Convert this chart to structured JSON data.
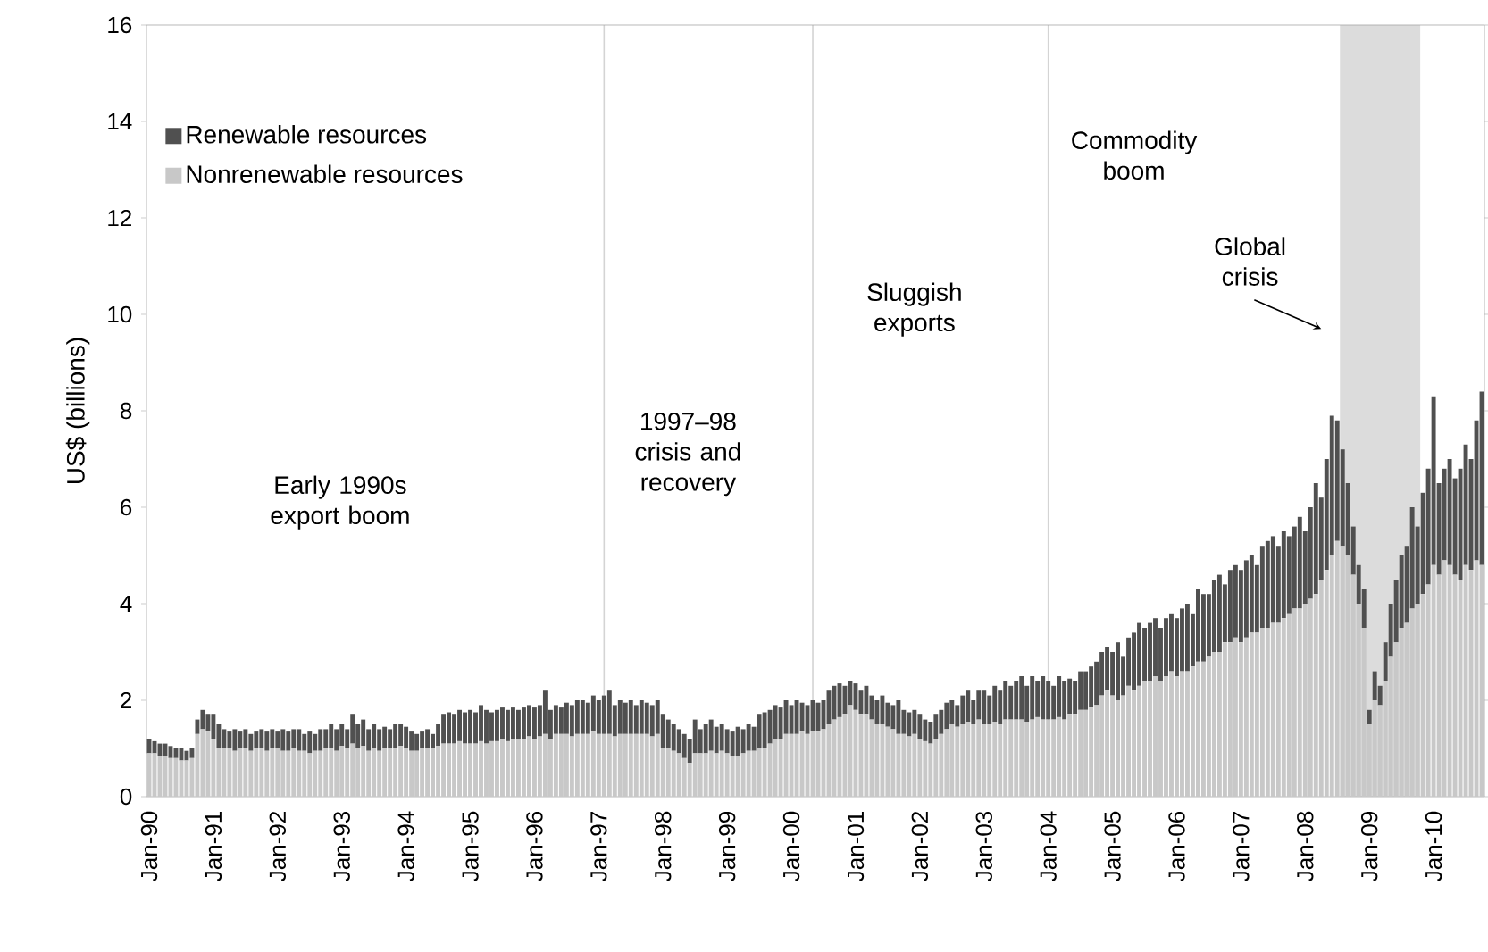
{
  "chart_data": {
    "type": "bar",
    "stacked": true,
    "ylabel": "US$ (billions)",
    "x": [
      "1990-01",
      "1990-02",
      "1990-03",
      "1990-04",
      "1990-05",
      "1990-06",
      "1990-07",
      "1990-08",
      "1990-09",
      "1990-10",
      "1990-11",
      "1990-12",
      "1991-01",
      "1991-02",
      "1991-03",
      "1991-04",
      "1991-05",
      "1991-06",
      "1991-07",
      "1991-08",
      "1991-09",
      "1991-10",
      "1991-11",
      "1991-12",
      "1992-01",
      "1992-02",
      "1992-03",
      "1992-04",
      "1992-05",
      "1992-06",
      "1992-07",
      "1992-08",
      "1992-09",
      "1992-10",
      "1992-11",
      "1992-12",
      "1993-01",
      "1993-02",
      "1993-03",
      "1993-04",
      "1993-05",
      "1993-06",
      "1993-07",
      "1993-08",
      "1993-09",
      "1993-10",
      "1993-11",
      "1993-12",
      "1994-01",
      "1994-02",
      "1994-03",
      "1994-04",
      "1994-05",
      "1994-06",
      "1994-07",
      "1994-08",
      "1994-09",
      "1994-10",
      "1994-11",
      "1994-12",
      "1995-01",
      "1995-02",
      "1995-03",
      "1995-04",
      "1995-05",
      "1995-06",
      "1995-07",
      "1995-08",
      "1995-09",
      "1995-10",
      "1995-11",
      "1995-12",
      "1996-01",
      "1996-02",
      "1996-03",
      "1996-04",
      "1996-05",
      "1996-06",
      "1996-07",
      "1996-08",
      "1996-09",
      "1996-10",
      "1996-11",
      "1996-12",
      "1997-01",
      "1997-02",
      "1997-03",
      "1997-04",
      "1997-05",
      "1997-06",
      "1997-07",
      "1997-08",
      "1997-09",
      "1997-10",
      "1997-11",
      "1997-12",
      "1998-01",
      "1998-02",
      "1998-03",
      "1998-04",
      "1998-05",
      "1998-06",
      "1998-07",
      "1998-08",
      "1998-09",
      "1998-10",
      "1998-11",
      "1998-12",
      "1999-01",
      "1999-02",
      "1999-03",
      "1999-04",
      "1999-05",
      "1999-06",
      "1999-07",
      "1999-08",
      "1999-09",
      "1999-10",
      "1999-11",
      "1999-12",
      "2000-01",
      "2000-02",
      "2000-03",
      "2000-04",
      "2000-05",
      "2000-06",
      "2000-07",
      "2000-08",
      "2000-09",
      "2000-10",
      "2000-11",
      "2000-12",
      "2001-01",
      "2001-02",
      "2001-03",
      "2001-04",
      "2001-05",
      "2001-06",
      "2001-07",
      "2001-08",
      "2001-09",
      "2001-10",
      "2001-11",
      "2001-12",
      "2002-01",
      "2002-02",
      "2002-03",
      "2002-04",
      "2002-05",
      "2002-06",
      "2002-07",
      "2002-08",
      "2002-09",
      "2002-10",
      "2002-11",
      "2002-12",
      "2003-01",
      "2003-02",
      "2003-03",
      "2003-04",
      "2003-05",
      "2003-06",
      "2003-07",
      "2003-08",
      "2003-09",
      "2003-10",
      "2003-11",
      "2003-12",
      "2004-01",
      "2004-02",
      "2004-03",
      "2004-04",
      "2004-05",
      "2004-06",
      "2004-07",
      "2004-08",
      "2004-09",
      "2004-10",
      "2004-11",
      "2004-12",
      "2005-01",
      "2005-02",
      "2005-03",
      "2005-04",
      "2005-05",
      "2005-06",
      "2005-07",
      "2005-08",
      "2005-09",
      "2005-10",
      "2005-11",
      "2005-12",
      "2006-01",
      "2006-02",
      "2006-03",
      "2006-04",
      "2006-05",
      "2006-06",
      "2006-07",
      "2006-08",
      "2006-09",
      "2006-10",
      "2006-11",
      "2006-12",
      "2007-01",
      "2007-02",
      "2007-03",
      "2007-04",
      "2007-05",
      "2007-06",
      "2007-07",
      "2007-08",
      "2007-09",
      "2007-10",
      "2007-11",
      "2007-12",
      "2008-01",
      "2008-02",
      "2008-03",
      "2008-04",
      "2008-05",
      "2008-06",
      "2008-07",
      "2008-08",
      "2008-09",
      "2008-10",
      "2008-11",
      "2008-12",
      "2009-01",
      "2009-02",
      "2009-03",
      "2009-04",
      "2009-05",
      "2009-06",
      "2009-07",
      "2009-08",
      "2009-09",
      "2009-10",
      "2009-11",
      "2009-12",
      "2010-01",
      "2010-02",
      "2010-03",
      "2010-04",
      "2010-05",
      "2010-06",
      "2010-07",
      "2010-08",
      "2010-09",
      "2010-10"
    ],
    "series": [
      {
        "name": "Nonrenewable resources",
        "color": "#c8c8c8",
        "values": [
          0.9,
          0.9,
          0.85,
          0.85,
          0.8,
          0.8,
          0.75,
          0.75,
          0.8,
          1.3,
          1.4,
          1.35,
          1.2,
          1.0,
          1.0,
          1.0,
          0.95,
          1.0,
          1.0,
          0.95,
          1.0,
          1.0,
          0.95,
          1.0,
          1.0,
          0.95,
          0.95,
          1.0,
          0.95,
          0.95,
          0.9,
          0.95,
          0.95,
          1.0,
          1.0,
          0.95,
          1.05,
          1.0,
          1.1,
          1.0,
          1.05,
          0.95,
          1.0,
          0.95,
          1.0,
          1.0,
          1.0,
          1.05,
          1.0,
          0.95,
          0.95,
          1.0,
          1.0,
          1.0,
          1.05,
          1.1,
          1.1,
          1.1,
          1.15,
          1.1,
          1.1,
          1.1,
          1.15,
          1.1,
          1.15,
          1.15,
          1.2,
          1.15,
          1.2,
          1.2,
          1.2,
          1.25,
          1.2,
          1.25,
          1.3,
          1.2,
          1.3,
          1.3,
          1.3,
          1.25,
          1.3,
          1.3,
          1.3,
          1.35,
          1.3,
          1.3,
          1.3,
          1.25,
          1.3,
          1.3,
          1.3,
          1.3,
          1.3,
          1.3,
          1.25,
          1.3,
          1.0,
          1.0,
          0.95,
          0.9,
          0.8,
          0.7,
          0.9,
          0.9,
          0.9,
          0.95,
          0.9,
          0.95,
          0.9,
          0.85,
          0.85,
          0.9,
          0.95,
          0.95,
          1.0,
          1.0,
          1.1,
          1.2,
          1.2,
          1.3,
          1.3,
          1.3,
          1.35,
          1.3,
          1.35,
          1.35,
          1.4,
          1.5,
          1.6,
          1.65,
          1.7,
          1.9,
          1.8,
          1.7,
          1.7,
          1.6,
          1.5,
          1.5,
          1.45,
          1.4,
          1.3,
          1.3,
          1.25,
          1.3,
          1.2,
          1.15,
          1.1,
          1.2,
          1.3,
          1.4,
          1.5,
          1.45,
          1.5,
          1.55,
          1.5,
          1.6,
          1.5,
          1.5,
          1.55,
          1.5,
          1.6,
          1.6,
          1.6,
          1.6,
          1.55,
          1.6,
          1.65,
          1.6,
          1.6,
          1.6,
          1.65,
          1.6,
          1.7,
          1.7,
          1.8,
          1.8,
          1.85,
          1.9,
          2.1,
          2.2,
          2.1,
          2.0,
          2.1,
          2.3,
          2.2,
          2.3,
          2.4,
          2.4,
          2.5,
          2.4,
          2.5,
          2.6,
          2.5,
          2.6,
          2.6,
          2.7,
          2.8,
          2.8,
          2.9,
          3.0,
          3.0,
          3.2,
          3.2,
          3.3,
          3.2,
          3.3,
          3.4,
          3.4,
          3.5,
          3.5,
          3.6,
          3.6,
          3.7,
          3.8,
          3.9,
          3.9,
          4.0,
          4.1,
          4.2,
          4.5,
          4.7,
          5.0,
          5.3,
          5.2,
          5.0,
          4.6,
          4.0,
          3.5,
          1.5,
          2.0,
          1.9,
          2.4,
          2.9,
          3.2,
          3.5,
          3.6,
          3.9,
          4.0,
          4.2,
          4.4,
          4.8,
          4.6,
          4.9,
          4.8,
          4.6,
          4.5,
          4.8,
          4.7,
          4.9,
          4.8
        ]
      },
      {
        "name": "Renewable resources",
        "color": "#505050",
        "values": [
          0.3,
          0.25,
          0.25,
          0.25,
          0.25,
          0.2,
          0.25,
          0.2,
          0.2,
          0.3,
          0.4,
          0.35,
          0.5,
          0.5,
          0.4,
          0.35,
          0.45,
          0.35,
          0.4,
          0.35,
          0.35,
          0.4,
          0.4,
          0.4,
          0.35,
          0.45,
          0.4,
          0.4,
          0.45,
          0.35,
          0.45,
          0.35,
          0.45,
          0.4,
          0.5,
          0.45,
          0.45,
          0.4,
          0.6,
          0.5,
          0.55,
          0.45,
          0.5,
          0.45,
          0.45,
          0.4,
          0.5,
          0.45,
          0.45,
          0.4,
          0.35,
          0.35,
          0.4,
          0.3,
          0.45,
          0.6,
          0.65,
          0.6,
          0.65,
          0.65,
          0.7,
          0.65,
          0.75,
          0.7,
          0.6,
          0.65,
          0.65,
          0.65,
          0.65,
          0.6,
          0.65,
          0.65,
          0.65,
          0.65,
          0.9,
          0.6,
          0.6,
          0.55,
          0.65,
          0.65,
          0.7,
          0.7,
          0.65,
          0.75,
          0.7,
          0.8,
          0.9,
          0.65,
          0.7,
          0.65,
          0.7,
          0.6,
          0.7,
          0.65,
          0.65,
          0.7,
          0.7,
          0.6,
          0.55,
          0.5,
          0.5,
          0.5,
          0.7,
          0.5,
          0.6,
          0.65,
          0.55,
          0.55,
          0.5,
          0.5,
          0.6,
          0.5,
          0.55,
          0.5,
          0.7,
          0.75,
          0.7,
          0.7,
          0.65,
          0.7,
          0.6,
          0.7,
          0.6,
          0.6,
          0.65,
          0.6,
          0.6,
          0.7,
          0.7,
          0.7,
          0.6,
          0.5,
          0.55,
          0.5,
          0.6,
          0.5,
          0.5,
          0.6,
          0.5,
          0.5,
          0.7,
          0.5,
          0.5,
          0.5,
          0.5,
          0.45,
          0.45,
          0.5,
          0.5,
          0.55,
          0.5,
          0.45,
          0.6,
          0.65,
          0.5,
          0.6,
          0.7,
          0.6,
          0.75,
          0.7,
          0.8,
          0.7,
          0.8,
          0.9,
          0.75,
          0.9,
          0.75,
          0.9,
          0.8,
          0.7,
          0.85,
          0.8,
          0.75,
          0.7,
          0.8,
          0.8,
          0.85,
          0.9,
          0.9,
          0.9,
          0.9,
          1.2,
          0.8,
          1.0,
          1.2,
          1.3,
          1.1,
          1.2,
          1.2,
          1.1,
          1.2,
          1.2,
          1.2,
          1.3,
          1.4,
          1.1,
          1.5,
          1.4,
          1.3,
          1.5,
          1.6,
          1.2,
          1.5,
          1.5,
          1.5,
          1.6,
          1.6,
          1.4,
          1.7,
          1.8,
          1.8,
          1.6,
          1.8,
          1.6,
          1.7,
          1.9,
          1.5,
          1.9,
          2.3,
          1.7,
          2.3,
          2.9,
          2.5,
          2.0,
          1.5,
          1.0,
          0.8,
          0.8,
          0.3,
          0.6,
          0.4,
          0.8,
          1.1,
          1.3,
          1.5,
          1.6,
          2.1,
          1.6,
          2.1,
          2.4,
          3.5,
          1.9,
          1.9,
          2.2,
          2.0,
          2.3,
          2.5,
          2.3,
          2.9,
          3.6
        ]
      }
    ],
    "xlim": [
      "1990-01",
      "2010-10"
    ],
    "xticks": [
      {
        "value": "1990-01",
        "label": "Jan-90"
      },
      {
        "value": "1991-01",
        "label": "Jan-91"
      },
      {
        "value": "1992-01",
        "label": "Jan-92"
      },
      {
        "value": "1993-01",
        "label": "Jan-93"
      },
      {
        "value": "1994-01",
        "label": "Jan-94"
      },
      {
        "value": "1995-01",
        "label": "Jan-95"
      },
      {
        "value": "1996-01",
        "label": "Jan-96"
      },
      {
        "value": "1997-01",
        "label": "Jan-97"
      },
      {
        "value": "1998-01",
        "label": "Jan-98"
      },
      {
        "value": "1999-01",
        "label": "Jan-99"
      },
      {
        "value": "2000-01",
        "label": "Jan-00"
      },
      {
        "value": "2001-01",
        "label": "Jan-01"
      },
      {
        "value": "2002-01",
        "label": "Jan-02"
      },
      {
        "value": "2003-01",
        "label": "Jan-03"
      },
      {
        "value": "2004-01",
        "label": "Jan-04"
      },
      {
        "value": "2005-01",
        "label": "Jan-05"
      },
      {
        "value": "2006-01",
        "label": "Jan-06"
      },
      {
        "value": "2007-01",
        "label": "Jan-07"
      },
      {
        "value": "2008-01",
        "label": "Jan-08"
      },
      {
        "value": "2009-01",
        "label": "Jan-09"
      },
      {
        "value": "2010-01",
        "label": "Jan-10"
      }
    ],
    "ylim": [
      0,
      16
    ],
    "yticks": [
      0,
      2,
      4,
      6,
      8,
      10,
      12,
      14,
      16
    ],
    "legend": "top left",
    "ref_lines": [
      {
        "axis": "x",
        "value": "1997-02",
        "color": "#d4d4d4"
      },
      {
        "axis": "x",
        "value": "2000-05",
        "color": "#d4d4d4"
      },
      {
        "axis": "x",
        "value": "2004-01",
        "color": "#d4d4d4"
      }
    ],
    "bands": [
      {
        "axis": "x",
        "from": "2008-08",
        "to": "2009-10",
        "color": "#dcdcdc"
      }
    ],
    "annotations": [
      "Early 1990s export boom",
      "1997–98 crisis and recovery",
      "Sluggish exports",
      "Commodity boom",
      "Global crisis"
    ]
  }
}
